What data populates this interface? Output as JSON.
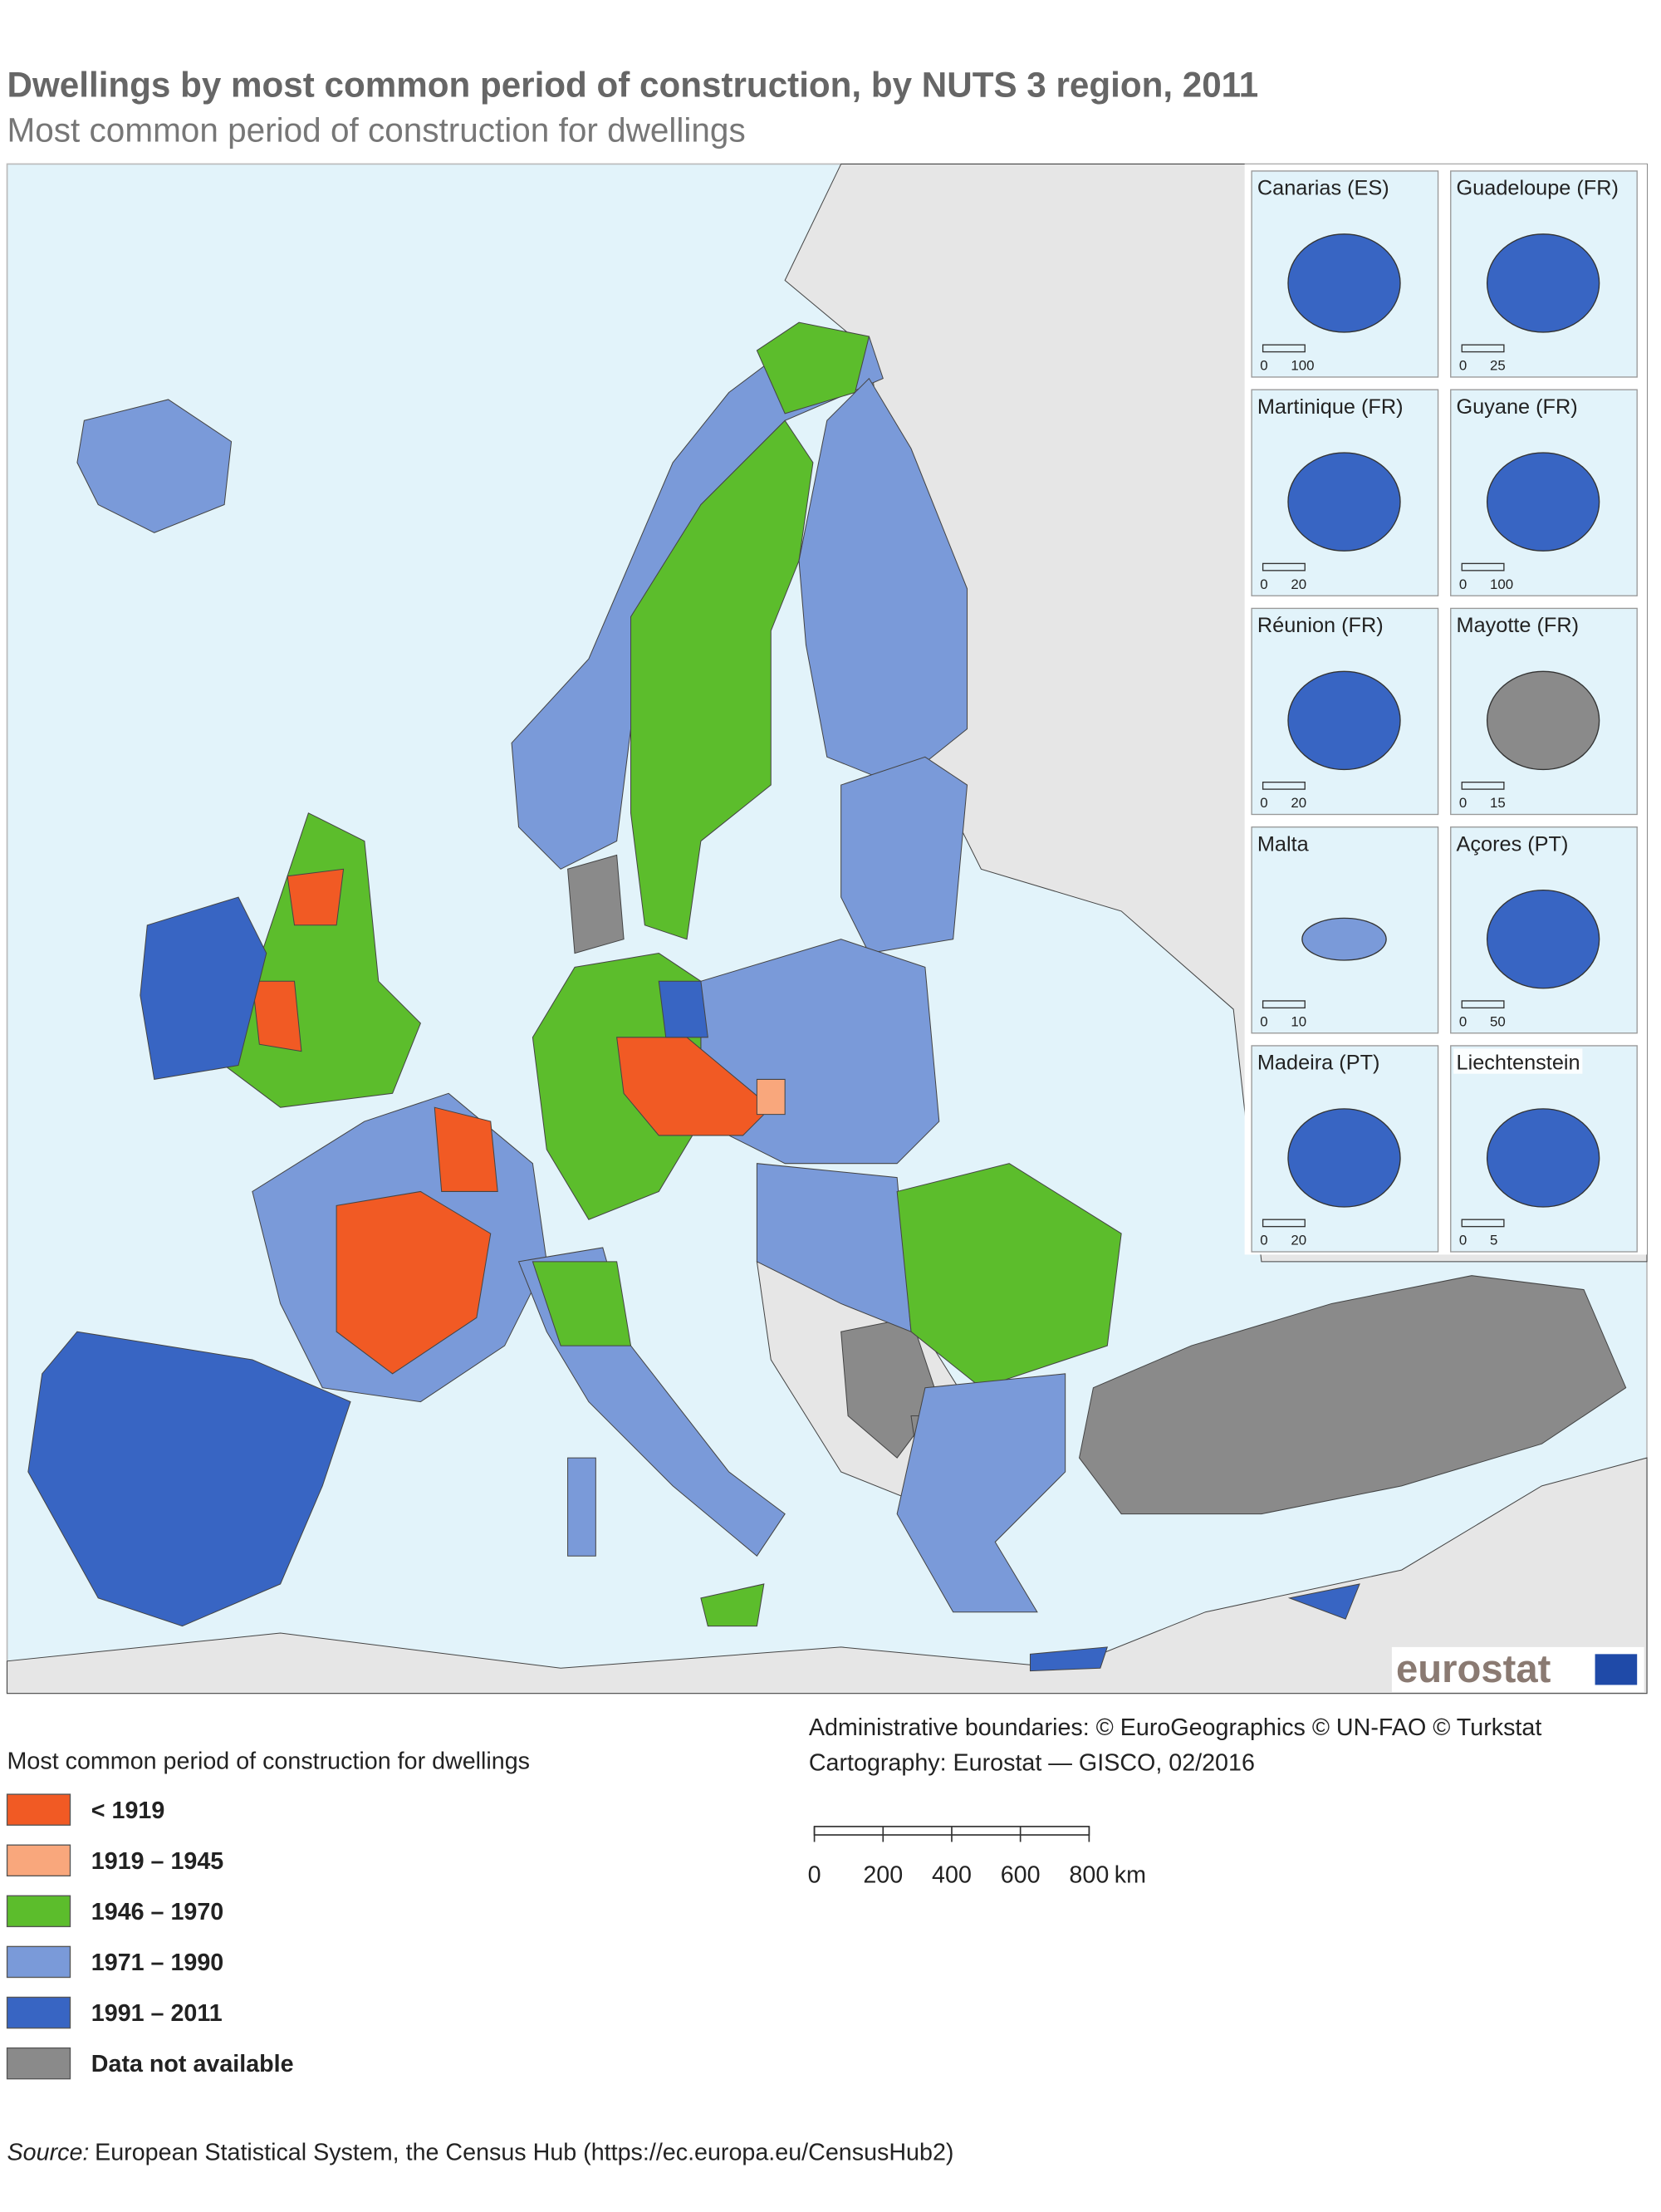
{
  "header": {
    "title": "Dwellings by most common period of construction, by NUTS 3 region, 2011",
    "subtitle": "Most common period of construction for dwellings"
  },
  "insets": [
    {
      "title": "Canarias (ES)",
      "scale": [
        0,
        100
      ]
    },
    {
      "title": "Guadeloupe (FR)",
      "scale": [
        0,
        25
      ]
    },
    {
      "title": "Martinique (FR)",
      "scale": [
        0,
        20
      ]
    },
    {
      "title": "Guyane (FR)",
      "scale": [
        0,
        100
      ]
    },
    {
      "title": "Réunion (FR)",
      "scale": [
        0,
        20
      ]
    },
    {
      "title": "Mayotte (FR)",
      "scale": [
        0,
        15
      ]
    },
    {
      "title": "Malta",
      "scale": [
        0,
        10
      ]
    },
    {
      "title": "Açores (PT)",
      "scale": [
        0,
        50
      ]
    },
    {
      "title": "Madeira (PT)",
      "scale": [
        0,
        20
      ]
    },
    {
      "title": "Liechtenstein",
      "scale": [
        0,
        5
      ]
    }
  ],
  "logo": "eurostat",
  "legend": {
    "title": "Most common period of construction for dwellings",
    "items": [
      {
        "label": "< 1919",
        "color": "#f15a24"
      },
      {
        "label": "1919 – 1945",
        "color": "#f9a77c"
      },
      {
        "label": "1946 – 1970",
        "color": "#5cbd2c"
      },
      {
        "label": "1971 – 1990",
        "color": "#7a9ad9"
      },
      {
        "label": "1991 – 2011",
        "color": "#3865c3"
      },
      {
        "label": "Data not available",
        "color": "#8a8a8a"
      }
    ]
  },
  "attribution": [
    "Administrative boundaries: © EuroGeographics © UN-FAO © Turkstat",
    "Cartography: Eurostat — GISCO, 02/2016"
  ],
  "scale_bar": {
    "ticks": [
      0,
      200,
      400,
      600,
      800
    ],
    "unit": "km"
  },
  "source": {
    "label": "Source:",
    "text": "European Statistical System, the Census Hub (https://ec.europa.eu/CensusHub2)"
  }
}
